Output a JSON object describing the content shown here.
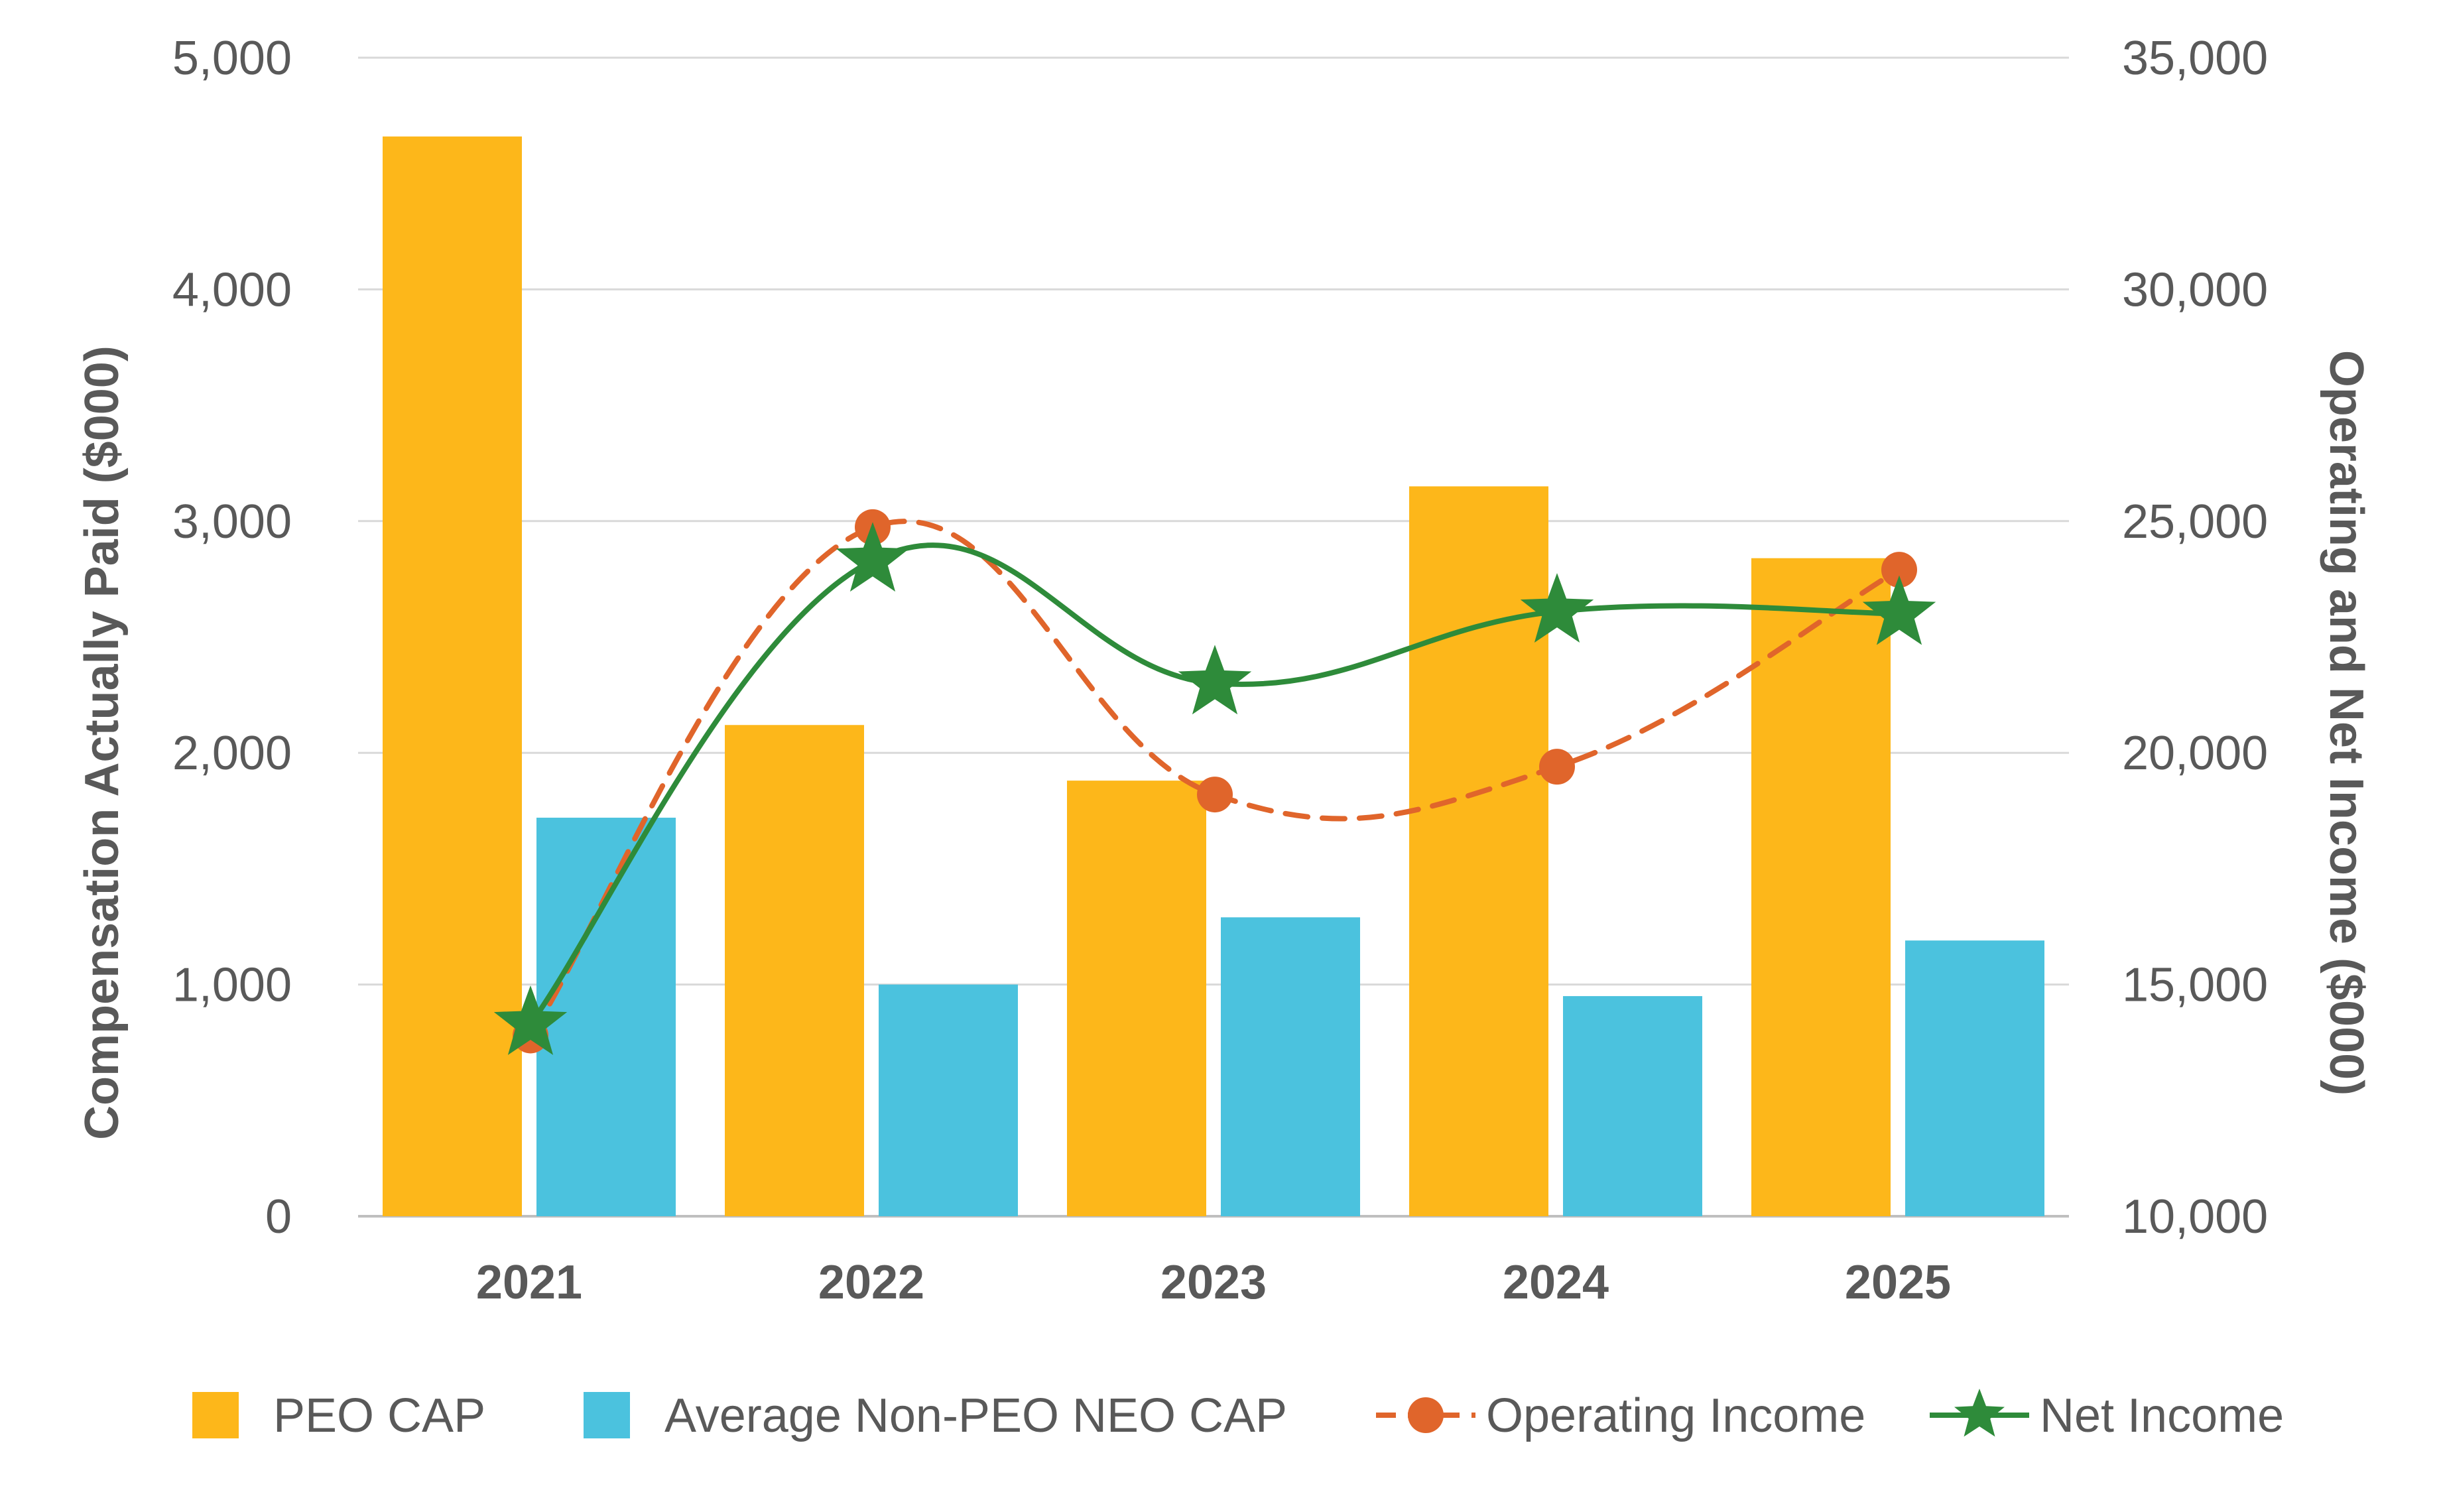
{
  "chart_data": {
    "type": "bar",
    "categories": [
      "2021",
      "2022",
      "2023",
      "2024",
      "2025"
    ],
    "left_axis": {
      "label": "Compensation Actually Paid ($000)",
      "ylim": [
        0,
        5000
      ],
      "ticks": [
        0,
        1000,
        2000,
        3000,
        4000,
        5000
      ],
      "tick_labels": [
        "0",
        "1,000",
        "2,000",
        "3,000",
        "4,000",
        "5,000"
      ]
    },
    "right_axis": {
      "label": "Operating and Net Income ($000)",
      "ylim": [
        10000,
        35000
      ],
      "ticks": [
        10000,
        15000,
        20000,
        25000,
        30000,
        35000
      ],
      "tick_labels": [
        "10,000",
        "15,000",
        "20,000",
        "25,000",
        "30,000",
        "35,000"
      ]
    },
    "grid": true,
    "legend_position": "bottom",
    "series": [
      {
        "name": "PEO CAP",
        "kind": "bar",
        "axis": "left",
        "color": "#FDB71A",
        "values": [
          4660,
          2120,
          1880,
          3150,
          2840
        ]
      },
      {
        "name": "Average Non-PEO NEO CAP",
        "kind": "bar",
        "axis": "left",
        "color": "#4BC2DE",
        "values": [
          1720,
          1000,
          1290,
          950,
          1190
        ]
      },
      {
        "name": "Operating Income",
        "kind": "line",
        "style": "dashed",
        "marker": "circle",
        "axis": "right",
        "color": "#E0652B",
        "values": [
          13900,
          24870,
          19100,
          19700,
          23950
        ]
      },
      {
        "name": "Net Income",
        "kind": "line",
        "style": "solid",
        "marker": "star",
        "axis": "right",
        "color": "#2E8B3A",
        "values": [
          14150,
          24150,
          21500,
          23050,
          23000
        ]
      }
    ]
  }
}
